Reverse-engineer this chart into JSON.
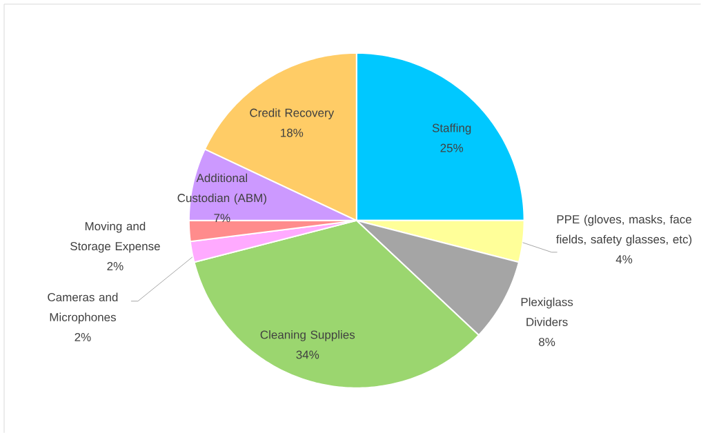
{
  "chart_data": {
    "type": "pie",
    "categories": [
      "Staffing",
      "PPE (gloves, masks, face fields, safety glasses, etc)",
      "Plexiglass Dividers",
      "Cleaning Supplies",
      "Cameras and Microphones",
      "Moving and Storage Expense",
      "Additional Custodian (ABM)",
      "Credit Recovery"
    ],
    "values": [
      25,
      4,
      8,
      34,
      2,
      2,
      7,
      18
    ],
    "value_labels": [
      "25%",
      "4%",
      "8%",
      "34%",
      "2%",
      "2%",
      "7%",
      "18%"
    ],
    "colors": [
      "#00c8ff",
      "#ffff99",
      "#a5a5a5",
      "#9bd66f",
      "#ffaaff",
      "#ff8c8c",
      "#cc99ff",
      "#ffcc66"
    ]
  }
}
